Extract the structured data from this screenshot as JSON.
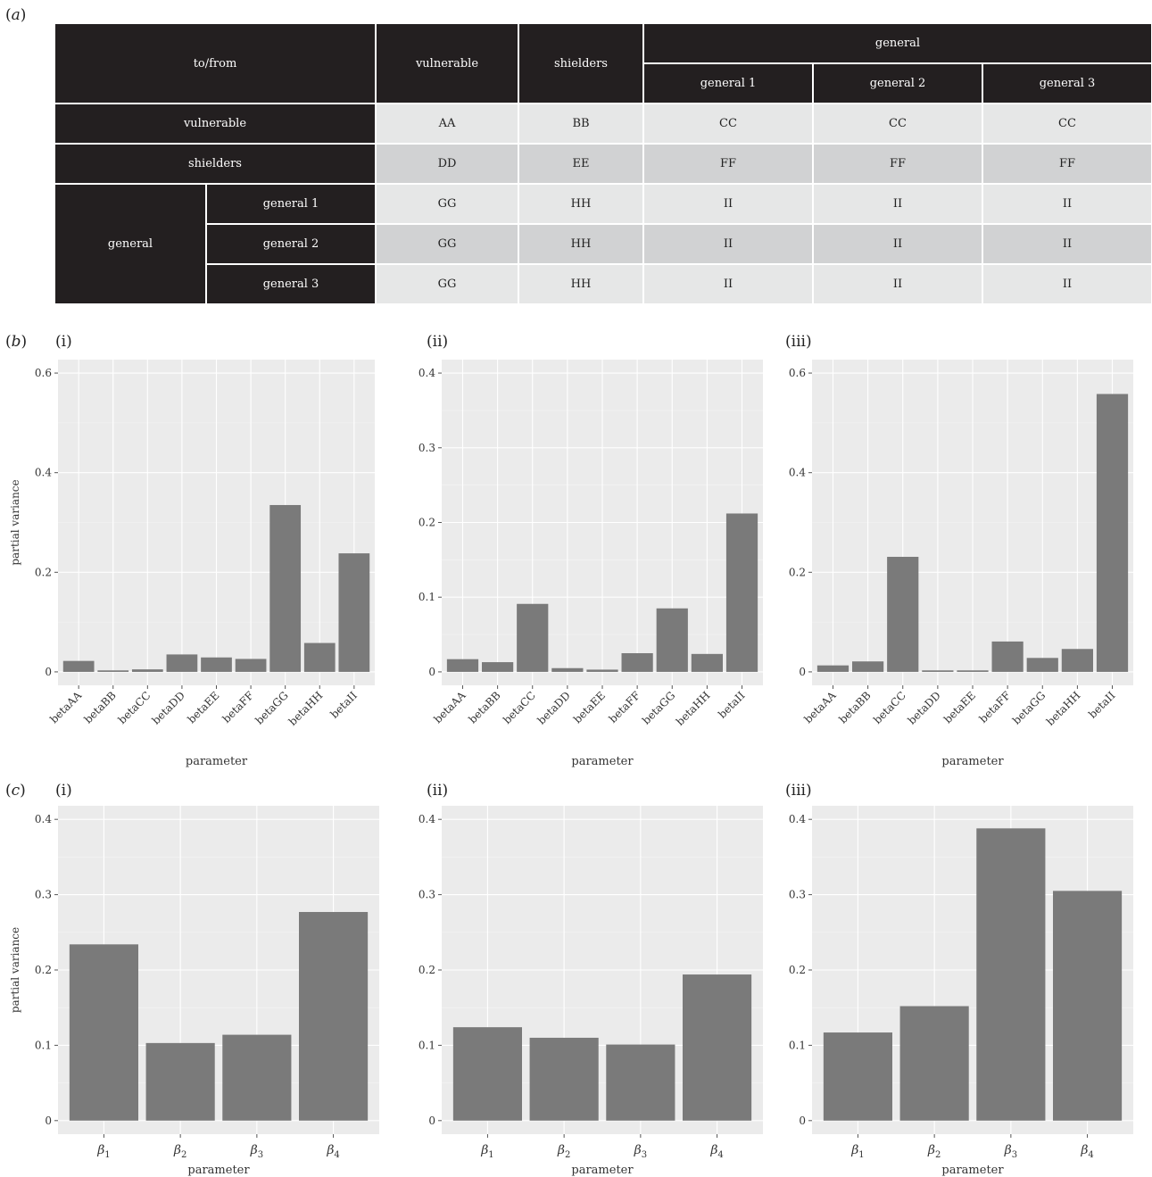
{
  "panel_labels": {
    "a": "a",
    "b": "b",
    "c": "c"
  },
  "table": {
    "corner": "to/from",
    "col_vulnerable": "vulnerable",
    "col_shielders": "shielders",
    "col_general": "general",
    "sub_cols": [
      "general 1",
      "general 2",
      "general 3"
    ],
    "row_vulnerable": "vulnerable",
    "row_shielders": "shielders",
    "row_general": "general",
    "sub_rows": [
      "general 1",
      "general 2",
      "general 3"
    ],
    "cells": [
      [
        "AA",
        "BB",
        "CC",
        "CC",
        "CC"
      ],
      [
        "DD",
        "EE",
        "FF",
        "FF",
        "FF"
      ],
      [
        "GG",
        "HH",
        "II",
        "II",
        "II"
      ],
      [
        "GG",
        "HH",
        "II",
        "II",
        "II"
      ],
      [
        "GG",
        "HH",
        "II",
        "II",
        "II"
      ]
    ]
  },
  "chart_data": [
    {
      "type": "bar",
      "subpanel": "(i)",
      "categories": [
        "betaAA",
        "betaBB",
        "betaCC",
        "betaDD",
        "betaEE",
        "betaFF",
        "betaGG",
        "betaHH",
        "betaII"
      ],
      "values": [
        0.022,
        0.003,
        0.005,
        0.035,
        0.029,
        0.026,
        0.335,
        0.058,
        0.238
      ],
      "xlabel": "parameter",
      "ylabel": "partial variance",
      "ylim": [
        0,
        0.6
      ],
      "yticks": [
        0,
        0.2,
        0.4,
        0.6
      ],
      "ytick_labels": [
        "0",
        "0.2",
        "0.4",
        "0.6"
      ]
    },
    {
      "type": "bar",
      "subpanel": "(ii)",
      "categories": [
        "betaAA",
        "betaBB",
        "betaCC",
        "betaDD",
        "betaEE",
        "betaFF",
        "betaGG",
        "betaHH",
        "betaII"
      ],
      "values": [
        0.017,
        0.013,
        0.091,
        0.005,
        0.003,
        0.025,
        0.085,
        0.024,
        0.212
      ],
      "xlabel": "parameter",
      "ylabel": "",
      "ylim": [
        0,
        0.4
      ],
      "yticks": [
        0,
        0.1,
        0.2,
        0.3,
        0.4
      ],
      "ytick_labels": [
        "0",
        "0.1",
        "0.2",
        "0.3",
        "0.4"
      ]
    },
    {
      "type": "bar",
      "subpanel": "(iii)",
      "categories": [
        "betaAA",
        "betaBB",
        "betaCC",
        "betaDD",
        "betaEE",
        "betaFF",
        "betaGG",
        "betaHH",
        "betaII"
      ],
      "values": [
        0.013,
        0.021,
        0.231,
        0.003,
        0.003,
        0.061,
        0.028,
        0.046,
        0.558
      ],
      "xlabel": "parameter",
      "ylabel": "",
      "ylim": [
        0,
        0.6
      ],
      "yticks": [
        0,
        0.2,
        0.4,
        0.6
      ],
      "ytick_labels": [
        "0",
        "0.2",
        "0.4",
        "0.6"
      ]
    },
    {
      "type": "bar",
      "subpanel": "(i)",
      "categories": [
        "β1",
        "β2",
        "β3",
        "β4"
      ],
      "values": [
        0.234,
        0.103,
        0.114,
        0.277
      ],
      "xlabel": "parameter",
      "ylabel": "partial variance",
      "ylim": [
        0,
        0.4
      ],
      "yticks": [
        0,
        0.1,
        0.2,
        0.3,
        0.4
      ],
      "ytick_labels": [
        "0",
        "0.1",
        "0.2",
        "0.3",
        "0.4"
      ]
    },
    {
      "type": "bar",
      "subpanel": "(ii)",
      "categories": [
        "β1",
        "β2",
        "β3",
        "β4"
      ],
      "values": [
        0.124,
        0.11,
        0.101,
        0.194
      ],
      "xlabel": "parameter",
      "ylabel": "",
      "ylim": [
        0,
        0.4
      ],
      "yticks": [
        0,
        0.1,
        0.2,
        0.3,
        0.4
      ],
      "ytick_labels": [
        "0",
        "0.1",
        "0.2",
        "0.3",
        "0.4"
      ]
    },
    {
      "type": "bar",
      "subpanel": "(iii)",
      "categories": [
        "β1",
        "β2",
        "β3",
        "β4"
      ],
      "values": [
        0.117,
        0.152,
        0.388,
        0.305
      ],
      "xlabel": "parameter",
      "ylabel": "",
      "ylim": [
        0,
        0.4
      ],
      "yticks": [
        0,
        0.1,
        0.2,
        0.3,
        0.4
      ],
      "ytick_labels": [
        "0",
        "0.1",
        "0.2",
        "0.3",
        "0.4"
      ]
    }
  ]
}
